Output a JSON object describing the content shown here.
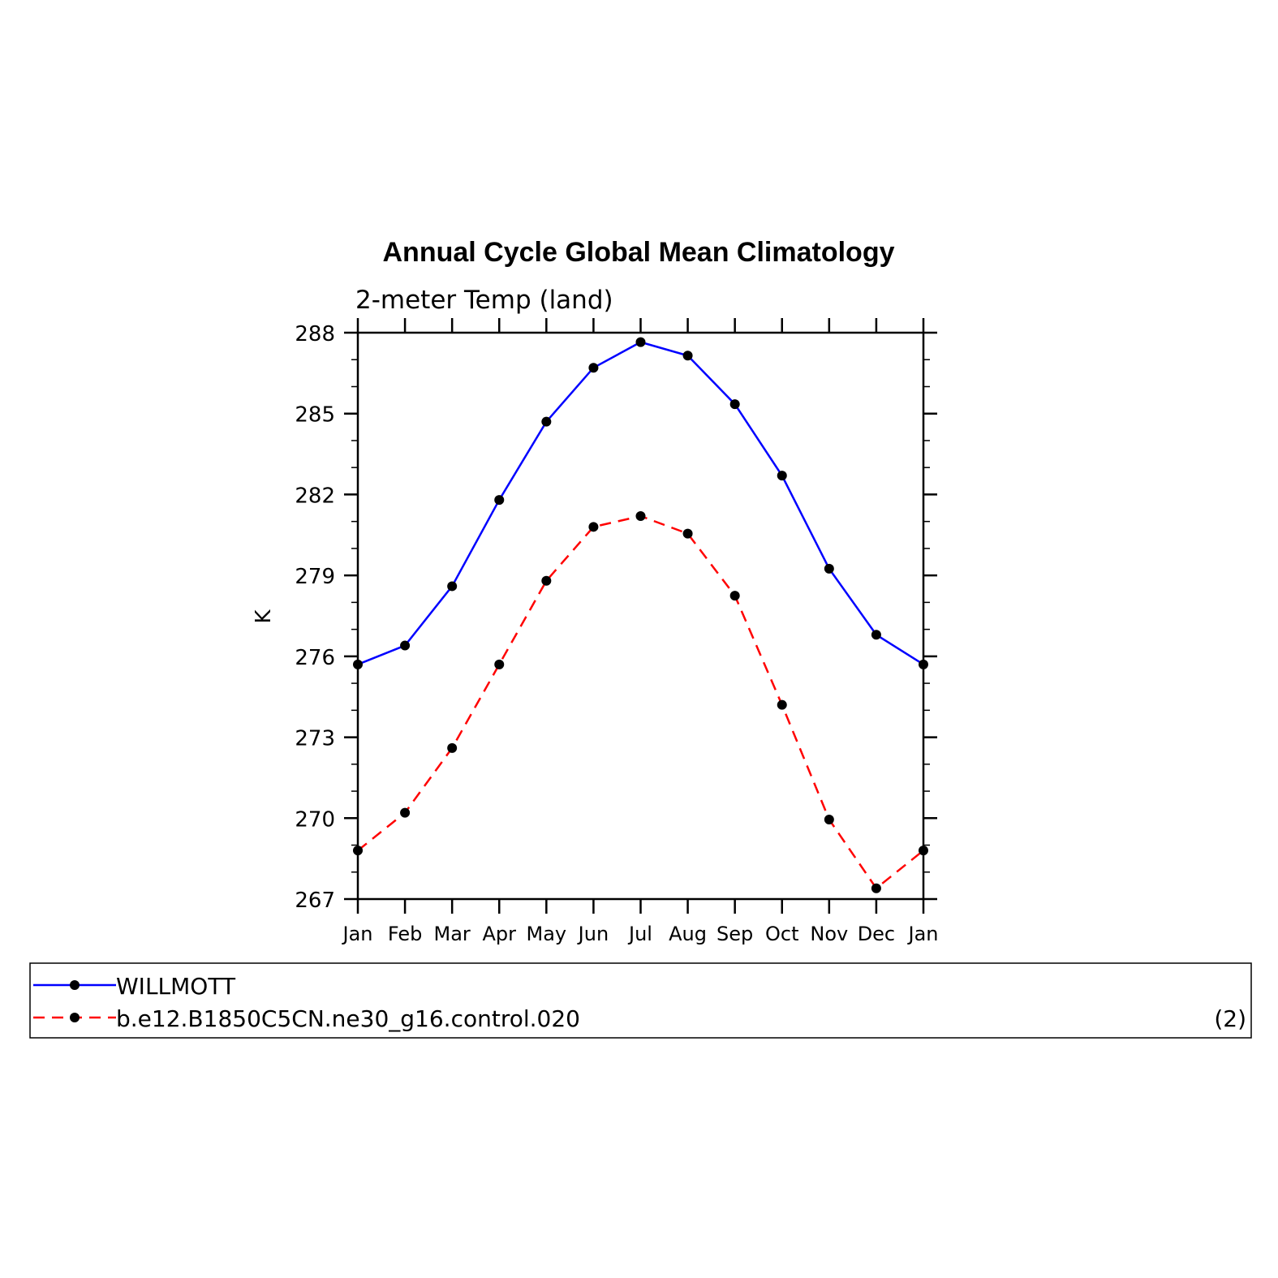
{
  "chart_data": {
    "type": "line",
    "title": "Annual Cycle Global Mean Climatology",
    "subtitle": "2-meter Temp (land)",
    "ylabel": "K",
    "xlabel": "",
    "ylim": [
      267,
      288
    ],
    "yticks": [
      "267",
      "270",
      "273",
      "276",
      "279",
      "282",
      "285",
      "288"
    ],
    "categories": [
      "Jan",
      "Feb",
      "Mar",
      "Apr",
      "May",
      "Jun",
      "Jul",
      "Aug",
      "Sep",
      "Oct",
      "Nov",
      "Dec",
      "Jan"
    ],
    "series": [
      {
        "name": "WILLMOTT",
        "color": "#0000ff",
        "dash": "solid",
        "values": [
          275.7,
          276.4,
          278.6,
          281.8,
          284.7,
          286.7,
          287.65,
          287.15,
          285.35,
          282.7,
          279.25,
          276.8,
          275.7
        ]
      },
      {
        "name": "b.e12.B1850C5CN.ne30_g16.control.020",
        "color": "#ff0000",
        "dash": "dashed",
        "values": [
          268.8,
          270.2,
          272.6,
          275.7,
          278.8,
          280.8,
          281.2,
          280.55,
          278.25,
          274.2,
          269.95,
          267.4,
          268.8
        ]
      }
    ],
    "legend_note": "(2)"
  }
}
